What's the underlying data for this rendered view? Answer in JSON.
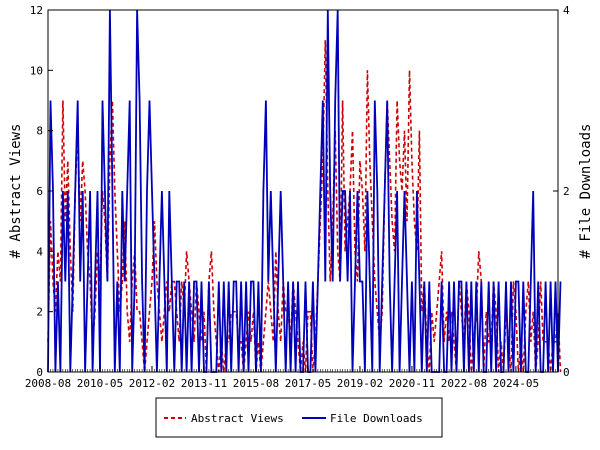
{
  "chart_data": {
    "type": "line",
    "ylabel_left": "# Abstract Views",
    "ylabel_right": "# File Downloads",
    "ylim_left": [
      0,
      12
    ],
    "ylim_right": [
      0,
      4
    ],
    "yticks_left": [
      0,
      2,
      4,
      6,
      8,
      10,
      12
    ],
    "yticks_right": [
      0,
      2,
      4
    ],
    "x_start": "2008-08",
    "x_end": "2025-10",
    "xticks": [
      "2008-08",
      "2010-05",
      "2012-02",
      "2013-11",
      "2015-08",
      "2017-05",
      "2019-02",
      "2020-11",
      "2022-08",
      "2024-05"
    ],
    "grid": false,
    "legend_position": "bottom-center",
    "series": [
      {
        "name": "Abstract Views",
        "axis": "left",
        "color": "#cc0000",
        "style": "dashed",
        "values": [
          1,
          5,
          3,
          2,
          4,
          3,
          9,
          5,
          7,
          4,
          2,
          6,
          8,
          5,
          7,
          6,
          4,
          3,
          1,
          2,
          4,
          3,
          6,
          5,
          3,
          7,
          9,
          6,
          4,
          2,
          3,
          5,
          2,
          1,
          3,
          4,
          2,
          2,
          1,
          0,
          1,
          2,
          3,
          5,
          3,
          2,
          1,
          2,
          3,
          2,
          3,
          3,
          2,
          1,
          3,
          2,
          4,
          3,
          2,
          1,
          3,
          2,
          1,
          2,
          0,
          3,
          4,
          2,
          1,
          0,
          1,
          0,
          1,
          1,
          2,
          2,
          2,
          1,
          1,
          0,
          1,
          2,
          1,
          2,
          0,
          1,
          0,
          1,
          2,
          3,
          2,
          1,
          4,
          2,
          1,
          3,
          2,
          2,
          1,
          3,
          2,
          1,
          0,
          1,
          0,
          2,
          2,
          0,
          1,
          3,
          5,
          7,
          11,
          6,
          3,
          5,
          8,
          4,
          3,
          9,
          4,
          5,
          6,
          8,
          4,
          3,
          7,
          6,
          4,
          10,
          7,
          5,
          3,
          2,
          1,
          2,
          6,
          9,
          7,
          5,
          4,
          9,
          7,
          6,
          8,
          5,
          10,
          7,
          5,
          4,
          8,
          2,
          3,
          1,
          0,
          2,
          1,
          2,
          3,
          4,
          1,
          2,
          1,
          2,
          1,
          0,
          3,
          2,
          1,
          3,
          2,
          0,
          1,
          2,
          4,
          3,
          0,
          2,
          1,
          1,
          3,
          2,
          0,
          1,
          0,
          2,
          1,
          0,
          3,
          2,
          0,
          1,
          0,
          2,
          3,
          1,
          2,
          0,
          1,
          3,
          1,
          1,
          1,
          0,
          1,
          1,
          2,
          0
        ]
      },
      {
        "name": "File Downloads",
        "axis": "right",
        "color": "#0000bb",
        "style": "solid",
        "values": [
          0,
          3,
          2,
          0,
          1,
          0,
          2,
          1,
          2,
          0,
          1,
          2,
          3,
          1,
          2,
          0,
          1,
          2,
          0,
          1,
          2,
          0,
          3,
          2,
          1,
          4,
          2,
          0,
          1,
          0,
          2,
          1,
          2,
          3,
          0,
          1,
          4,
          3,
          1,
          0,
          2,
          3,
          2,
          1,
          0,
          1,
          2,
          1,
          0,
          2,
          1,
          0,
          1,
          1,
          0,
          1,
          0,
          1,
          0,
          1,
          1,
          0,
          1,
          0,
          0,
          1,
          0,
          0,
          0,
          1,
          0,
          1,
          0,
          1,
          0,
          1,
          1,
          0,
          1,
          0,
          1,
          0,
          1,
          1,
          0,
          1,
          0,
          2,
          3,
          1,
          2,
          1,
          0,
          1,
          2,
          1,
          0,
          1,
          0,
          1,
          0,
          1,
          0,
          0,
          1,
          0,
          0,
          1,
          0,
          1,
          2,
          3,
          1,
          4,
          2,
          1,
          3,
          4,
          1,
          2,
          2,
          1,
          2,
          0,
          1,
          2,
          1,
          1,
          0,
          2,
          1,
          0,
          3,
          2,
          0,
          1,
          2,
          3,
          1,
          0,
          1,
          2,
          0,
          1,
          2,
          1,
          0,
          1,
          0,
          2,
          1,
          0,
          1,
          0,
          1,
          0,
          0,
          0,
          0,
          1,
          0,
          0,
          1,
          0,
          1,
          0,
          1,
          1,
          0,
          1,
          0,
          1,
          0,
          1,
          0,
          1,
          0,
          0,
          1,
          0,
          1,
          0,
          1,
          0,
          0,
          1,
          0,
          1,
          0,
          1,
          1,
          0,
          1,
          0,
          0,
          1,
          2,
          0,
          1,
          0,
          0,
          1,
          0,
          1,
          0,
          1,
          0,
          1
        ]
      }
    ]
  }
}
